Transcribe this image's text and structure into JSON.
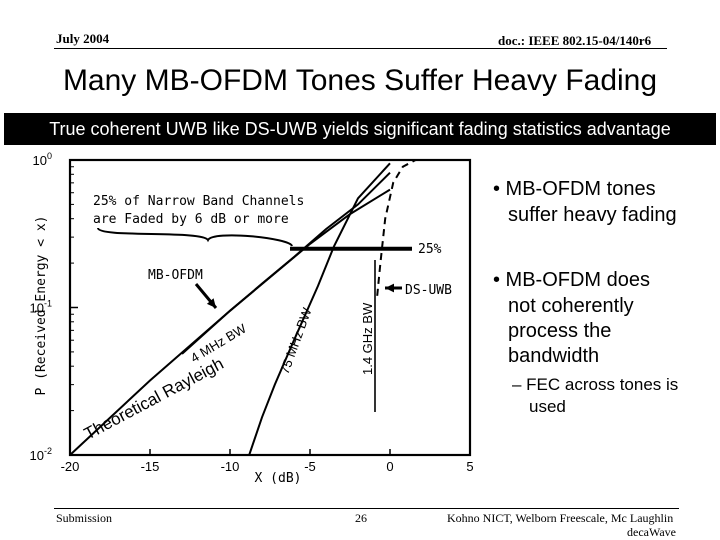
{
  "header": {
    "date": "July 2004",
    "doc_id": "doc.: IEEE 802.15-04/140r6"
  },
  "slide": {
    "title": "Many MB-OFDM Tones Suffer Heavy Fading",
    "banner": "True coherent UWB like DS-UWB yields significant fading statistics advantage"
  },
  "bullets": [
    "• MB-OFDM tones",
    "suffer heavy fading",
    "• MB-OFDM does",
    "not coherently",
    "process the",
    "bandwidth"
  ],
  "sub_bullet": [
    "– FEC across tones is",
    "used"
  ],
  "footer": {
    "left": "Submission",
    "page": "26",
    "authors_line1": "Kohno NICT, Welborn Freescale, Mc Laughlin",
    "authors_line2": "decaWave"
  },
  "chart_data": {
    "type": "line",
    "xlabel": "X (dB)",
    "ylabel": "P (Received Energy < x)",
    "x_ticks": [
      "-20",
      "-15",
      "-10",
      "-5",
      "0",
      "5"
    ],
    "y_ticks": [
      {
        "base": "10",
        "exp": "0"
      },
      {
        "base": "10",
        "exp": "-1"
      },
      {
        "base": "10",
        "exp": "-2"
      }
    ],
    "xlim": [
      -20,
      5
    ],
    "ylim_log10": [
      -2,
      0
    ],
    "grid": false,
    "annotations": {
      "faded_note_line1": "25% of Narrow Band Channels",
      "faded_note_line2": "are Faded by 6 dB or more",
      "pct_25": "25%",
      "mb_ofdm": "MB-OFDM",
      "ds_uwb": "DS-UWB"
    },
    "series": [
      {
        "label": "Theoretical Rayleigh",
        "style": "solid",
        "x": [
          -20,
          -15,
          -10,
          -5,
          -2.5,
          0
        ],
        "y": [
          0.01,
          0.032,
          0.095,
          0.27,
          0.43,
          0.63
        ]
      },
      {
        "label": "4 MHz BW",
        "style": "solid",
        "x": [
          -13,
          -10,
          -8,
          -6,
          -4,
          -2,
          0
        ],
        "y": [
          0.0485,
          0.095,
          0.145,
          0.22,
          0.34,
          0.5,
          0.82
        ]
      },
      {
        "label": "75 MHz BW",
        "style": "solid",
        "x": [
          -8.8,
          -8,
          -7.2,
          -6,
          -4.5,
          -3.5,
          -2,
          0
        ],
        "y": [
          0.01,
          0.018,
          0.03,
          0.06,
          0.14,
          0.26,
          0.55,
          0.95
        ]
      },
      {
        "label": "1.4 GHz BW",
        "style": "dashed",
        "x": [
          -0.8,
          -0.6,
          -0.3,
          0.2,
          0.8,
          1.6
        ],
        "y": [
          0.12,
          0.2,
          0.4,
          0.7,
          0.9,
          1.0
        ]
      }
    ]
  }
}
